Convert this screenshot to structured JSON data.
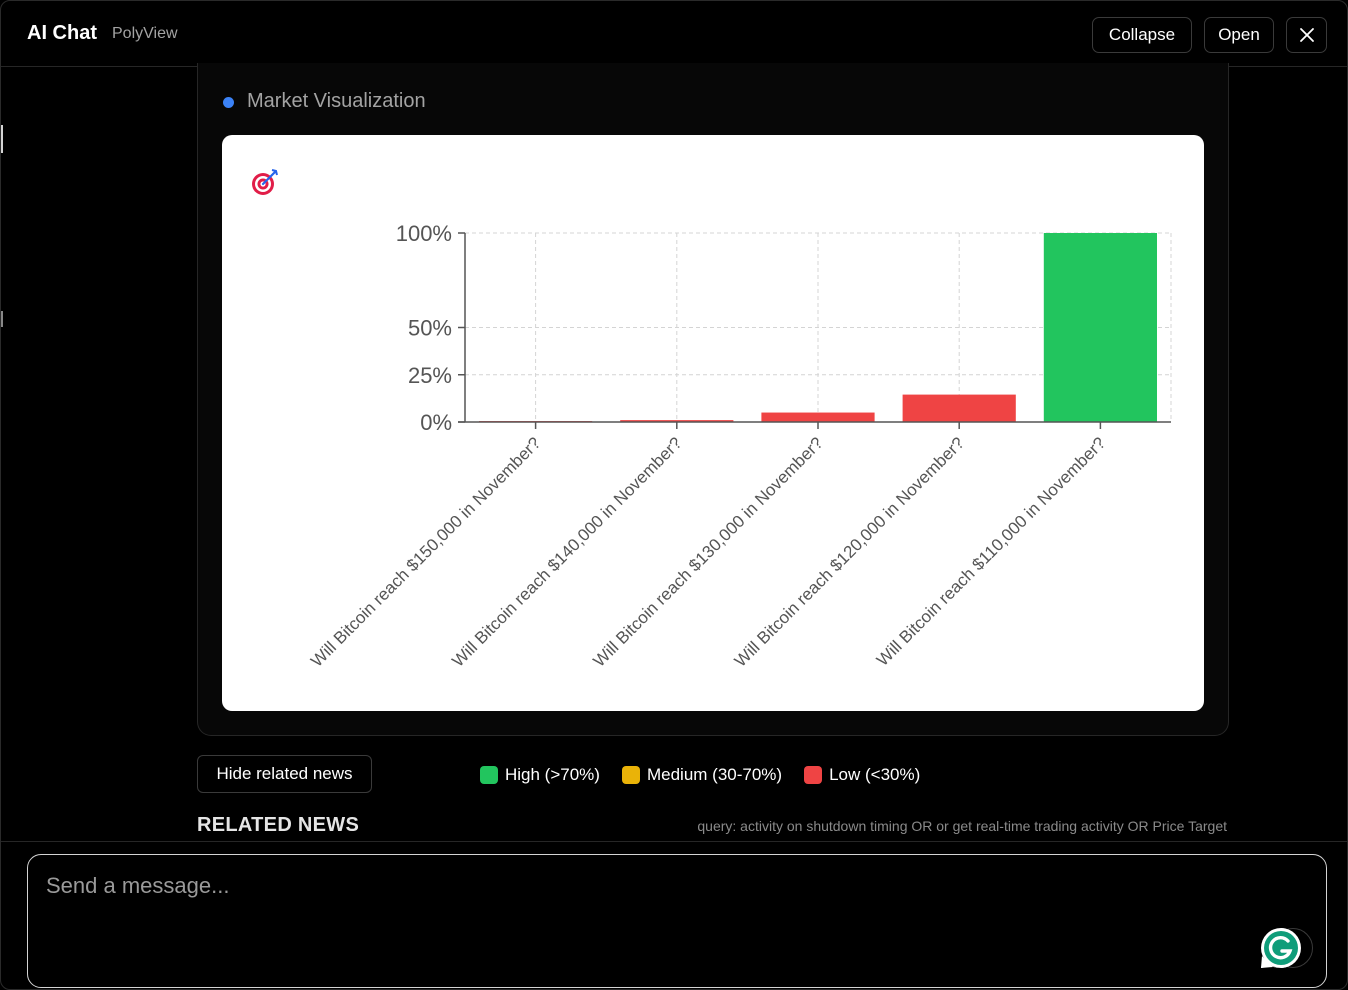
{
  "header": {
    "title": "AI Chat",
    "subtitle": "PolyView",
    "collapse_label": "Collapse",
    "open_label": "Open",
    "close_icon": "close-icon"
  },
  "visualization": {
    "title": "Market Visualization",
    "dot_color": "#3b82f6",
    "icon": "target-icon"
  },
  "chart_data": {
    "type": "bar",
    "title": "",
    "xlabel": "",
    "ylabel": "",
    "ylim": [
      0,
      100
    ],
    "y_ticks": [
      0,
      25,
      50,
      100
    ],
    "y_tick_labels": [
      "0%",
      "25%",
      "50%",
      "100%"
    ],
    "grid": true,
    "categories": [
      "Will Bitcoin reach $150,000 in November?",
      "Will Bitcoin reach $140,000 in November?",
      "Will Bitcoin reach $130,000 in November?",
      "Will Bitcoin reach $120,000 in November?",
      "Will Bitcoin reach $110,000 in November?"
    ],
    "values": [
      0.5,
      1,
      5,
      14.5,
      100
    ],
    "bar_colors": [
      "#ef4444",
      "#ef4444",
      "#ef4444",
      "#ef4444",
      "#22c55e"
    ]
  },
  "controls": {
    "hide_news_label": "Hide related news"
  },
  "legend": [
    {
      "label": "High (>70%)",
      "color": "#22c55e"
    },
    {
      "label": "Medium (30-70%)",
      "color": "#eab308"
    },
    {
      "label": "Low (<30%)",
      "color": "#ef4444"
    }
  ],
  "news": {
    "title": "RELATED NEWS",
    "query": "query: activity on shutdown timing OR or get real-time trading activity OR Price Target"
  },
  "composer": {
    "placeholder": "Send a message..."
  }
}
